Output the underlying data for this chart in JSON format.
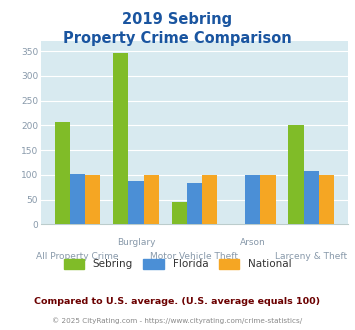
{
  "title_line1": "2019 Sebring",
  "title_line2": "Property Crime Comparison",
  "categories": [
    "All Property Crime",
    "Burglary",
    "Motor Vehicle Theft",
    "Arson",
    "Larceny & Theft"
  ],
  "sebring_values": [
    207,
    347,
    45,
    0,
    200
  ],
  "florida_values": [
    102,
    87,
    83,
    100,
    107
  ],
  "national_values": [
    100,
    100,
    100,
    100,
    100
  ],
  "sebring_color": "#80bc28",
  "florida_color": "#4b8fd6",
  "national_color": "#f5a623",
  "bg_color": "#d8eaf0",
  "ylim": [
    0,
    370
  ],
  "yticks": [
    0,
    50,
    100,
    150,
    200,
    250,
    300,
    350
  ],
  "bar_width": 0.26,
  "legend_labels": [
    "Sebring",
    "Florida",
    "National"
  ],
  "footer_text1": "Compared to U.S. average. (U.S. average equals 100)",
  "footer_text2": "© 2025 CityRating.com - https://www.cityrating.com/crime-statistics/",
  "title_color": "#1a55a0",
  "tick_label_color": "#8899aa",
  "footer1_color": "#6b0000",
  "footer2_color": "#888888",
  "url_color": "#4b8fd6"
}
